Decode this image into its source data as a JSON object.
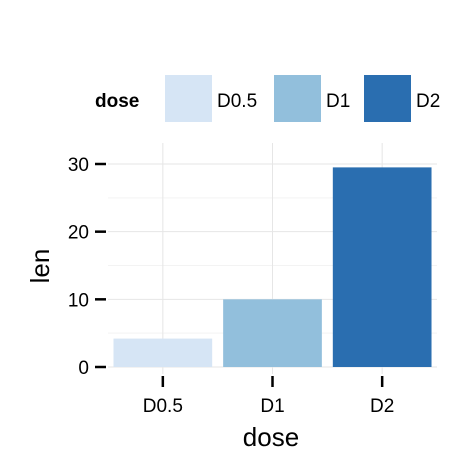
{
  "chart_data": {
    "type": "bar",
    "categories": [
      "D0.5",
      "D1",
      "D2"
    ],
    "values": [
      4.2,
      10.0,
      29.5
    ],
    "colors": [
      "#d6e5f5",
      "#92bfdc",
      "#2a6eb0"
    ],
    "xlabel": "dose",
    "ylabel": "len",
    "ylim": [
      0,
      30
    ],
    "yticks": [
      "0",
      "10",
      "20",
      "30"
    ],
    "grid": true,
    "legend": {
      "title": "dose",
      "position": "top",
      "entries": [
        "D0.5",
        "D1",
        "D2"
      ]
    }
  }
}
